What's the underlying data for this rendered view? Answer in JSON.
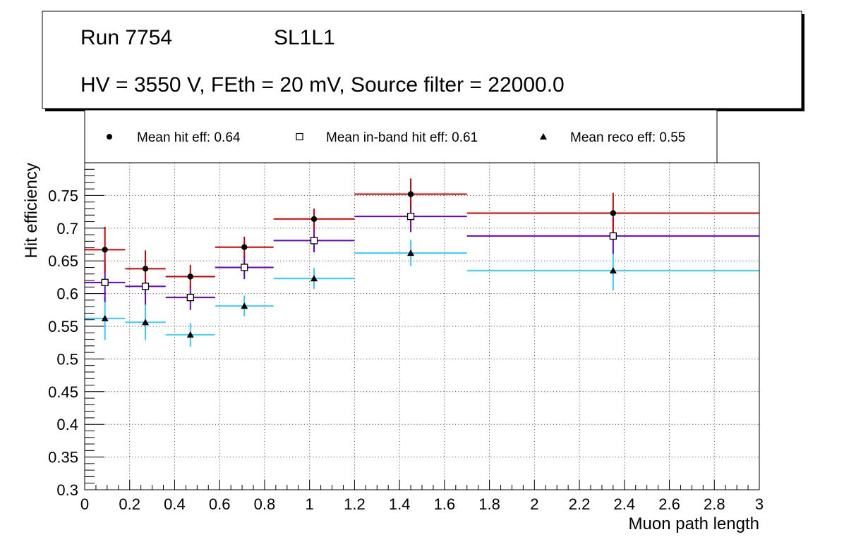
{
  "header": {
    "run": "Run 7754",
    "layer": "SL1L1",
    "conditions": "HV = 3550 V, FEth = 20 mV, Source filter = 22000.0"
  },
  "legend": {
    "hit": "Mean hit  eff: 0.64",
    "inband": "Mean in-band hit eff: 0.61",
    "reco": "Mean reco eff: 0.55"
  },
  "colors": {
    "hit": "#cc0000",
    "inband": "#6600cc",
    "reco": "#33ccff",
    "marker": "#000000"
  },
  "chart_data": {
    "type": "scatter",
    "title": "",
    "xlabel": "Muon path length",
    "ylabel": "Hit efficiency",
    "xlim": [
      0,
      3
    ],
    "ylim": [
      0.3,
      0.8
    ],
    "grid": true,
    "x_ticks": [
      "0",
      "0.2",
      "0.4",
      "0.6",
      "0.8",
      "1",
      "1.2",
      "1.4",
      "1.6",
      "1.8",
      "2",
      "2.2",
      "2.4",
      "2.6",
      "2.8",
      "3"
    ],
    "y_ticks": [
      "0.3",
      "0.35",
      "0.4",
      "0.45",
      "0.5",
      "0.55",
      "0.6",
      "0.65",
      "0.7",
      "0.75"
    ],
    "bins": [
      {
        "low": 0.0,
        "high": 0.18,
        "center": 0.09
      },
      {
        "low": 0.18,
        "high": 0.36,
        "center": 0.27
      },
      {
        "low": 0.36,
        "high": 0.58,
        "center": 0.47
      },
      {
        "low": 0.58,
        "high": 0.84,
        "center": 0.71
      },
      {
        "low": 0.84,
        "high": 1.2,
        "center": 1.02
      },
      {
        "low": 1.2,
        "high": 1.7,
        "center": 1.45
      },
      {
        "low": 1.7,
        "high": 3.0,
        "center": 2.35
      }
    ],
    "series": [
      {
        "name": "hit",
        "marker": "circle",
        "color_key": "hit",
        "values": [
          0.667,
          0.638,
          0.626,
          0.671,
          0.714,
          0.752,
          0.723
        ],
        "errors": [
          0.035,
          0.028,
          0.018,
          0.016,
          0.016,
          0.024,
          0.031
        ]
      },
      {
        "name": "inband",
        "marker": "square",
        "color_key": "inband",
        "values": [
          0.617,
          0.611,
          0.594,
          0.64,
          0.681,
          0.718,
          0.688
        ],
        "errors": [
          0.03,
          0.028,
          0.019,
          0.018,
          0.018,
          0.024,
          0.027
        ]
      },
      {
        "name": "reco",
        "marker": "triangle",
        "color_key": "reco",
        "values": [
          0.562,
          0.556,
          0.537,
          0.581,
          0.623,
          0.662,
          0.635
        ],
        "errors": [
          0.033,
          0.027,
          0.018,
          0.016,
          0.016,
          0.02,
          0.03
        ]
      }
    ]
  }
}
